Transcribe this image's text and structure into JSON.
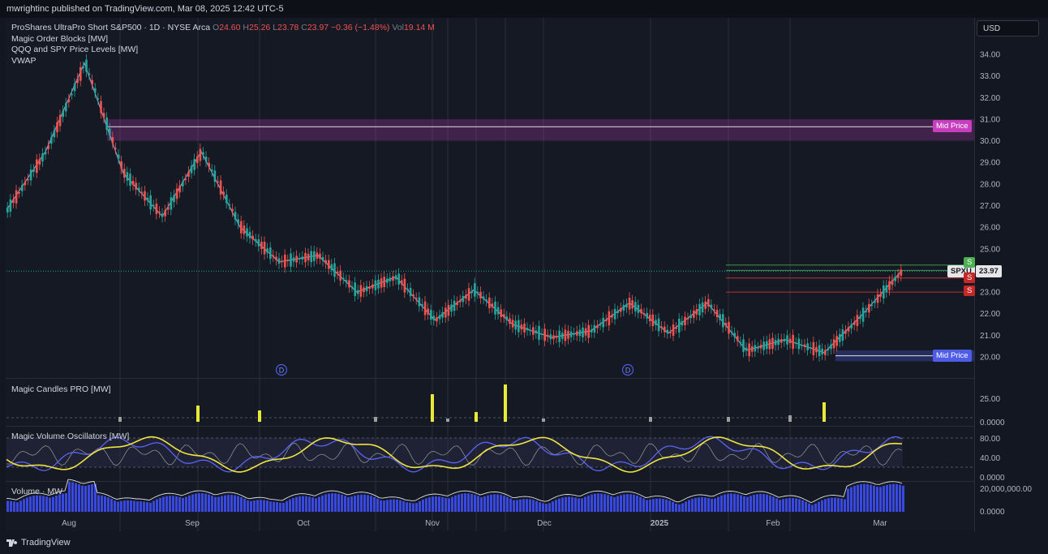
{
  "header": {
    "published": "mwrightinc published on TradingView.com, Mar 08, 2025 12:42 UTC-5"
  },
  "legend": {
    "symbol": "ProShares UltraPro Short S&P500 · 1D · NYSE Arca",
    "o_label": "O",
    "o_value": "24.60",
    "h_label": "H",
    "h_value": "25.26",
    "l_label": "L",
    "l_value": "23.78",
    "c_label": "C",
    "c_value": "23.97",
    "change": "−0.36 (−1.48%)",
    "vol_label": "Vol",
    "vol_value": "19.14 M",
    "indicators": [
      "Magic Order Blocks [MW]",
      "QQQ and SPY Price Levels [MW]",
      "VWAP"
    ]
  },
  "currency": "USD",
  "panes": {
    "candles_pro": "Magic Candles PRO [MW]",
    "volume_osc": "Magic Volume Oscillators [MW]",
    "volume": "Volume · MW"
  },
  "tags": {
    "mid_price_top": "Mid Price",
    "mid_price_bottom": "Mid Price",
    "symbol_tag": "SPXU",
    "last_price": "23.97",
    "s_tag_1": "S",
    "s_tag_2": "S",
    "s_tag_3": "S"
  },
  "markers": {
    "d1": "D",
    "d2": "D"
  },
  "footer": {
    "brand": "TradingView"
  },
  "colors": {
    "up": "#26a69a",
    "down": "#ef5350",
    "mid_top": "#c73fbf",
    "mid_bottom": "#4f5ce8",
    "green_level": "#4caf50",
    "red_level": "#e53935",
    "osc_yellow": "#f0e442",
    "osc_blue": "#5b63f5",
    "vol_blue": "#3f51ff"
  },
  "chart_data": {
    "type": "line",
    "title": "ProShares UltraPro Short S&P500 · 1D · NYSE Arca",
    "xlabel": "",
    "ylabel": "",
    "x_tick_labels": [
      "Aug",
      "Sep",
      "Oct",
      "Nov",
      "Dec",
      "2025",
      "Feb",
      "Mar"
    ],
    "y_tick_labels": [
      "34.00",
      "33.00",
      "32.00",
      "31.00",
      "30.00",
      "29.00",
      "28.00",
      "27.00",
      "26.00",
      "25.00",
      "24.00",
      "23.00",
      "22.00",
      "21.00",
      "20.00"
    ],
    "ylim": [
      19.0,
      35.0
    ],
    "ohlc_last": {
      "open": 24.6,
      "high": 25.26,
      "low": 23.78,
      "close": 23.97
    },
    "x": [
      "Jul 15",
      "Jul 25",
      "Aug 5",
      "Aug 15",
      "Aug 25",
      "Sep 5",
      "Sep 15",
      "Sep 25",
      "Oct 5",
      "Oct 15",
      "Oct 25",
      "Nov 5",
      "Nov 15",
      "Nov 25",
      "Dec 5",
      "Dec 15",
      "Dec 25",
      "Jan 5",
      "Jan 15",
      "Jan 25",
      "Feb 5",
      "Feb 15",
      "Feb 25",
      "Mar 7"
    ],
    "series": [
      {
        "values": [
          26.8,
          29.5,
          33.6,
          28.5,
          26.5,
          29.5,
          26.0,
          24.4,
          24.7,
          23.0,
          23.7,
          21.7,
          23.1,
          21.5,
          20.9,
          21.2,
          22.5,
          21.1,
          22.5,
          20.3,
          20.8,
          20.2,
          22.0,
          24.0
        ]
      }
    ],
    "levels": [
      {
        "label": "Mid Price",
        "value": 30.65
      },
      {
        "label": "Mid Price",
        "value": 20.05
      }
    ],
    "panes": {
      "candles_pro_ticks": [
        "25.00",
        "0.0000"
      ],
      "volume_osc_ticks": [
        "80.00",
        "40.00",
        "0.0000"
      ],
      "volume_ticks": [
        "20,000,000.00",
        "0.0000"
      ]
    }
  }
}
